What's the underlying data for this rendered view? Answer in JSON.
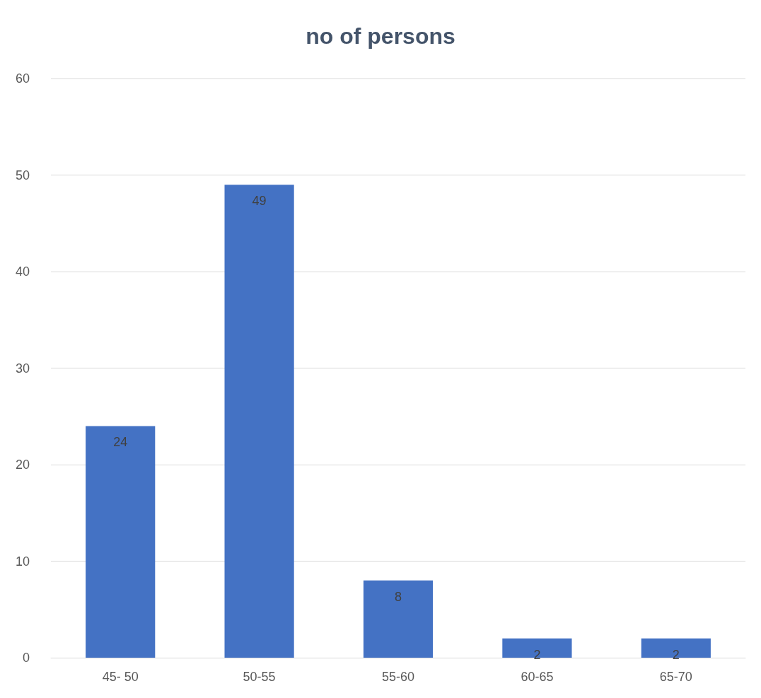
{
  "chart_data": {
    "type": "bar",
    "title": "no of persons",
    "categories": [
      "45- 50",
      "50-55",
      "55-60",
      "60-65",
      "65-70"
    ],
    "values": [
      24,
      49,
      8,
      2,
      2
    ],
    "color": "#4472c4",
    "ylim": [
      0,
      60
    ],
    "yticks": [
      0,
      10,
      20,
      30,
      40,
      50,
      60
    ],
    "grid": "y",
    "data_labels": true
  }
}
